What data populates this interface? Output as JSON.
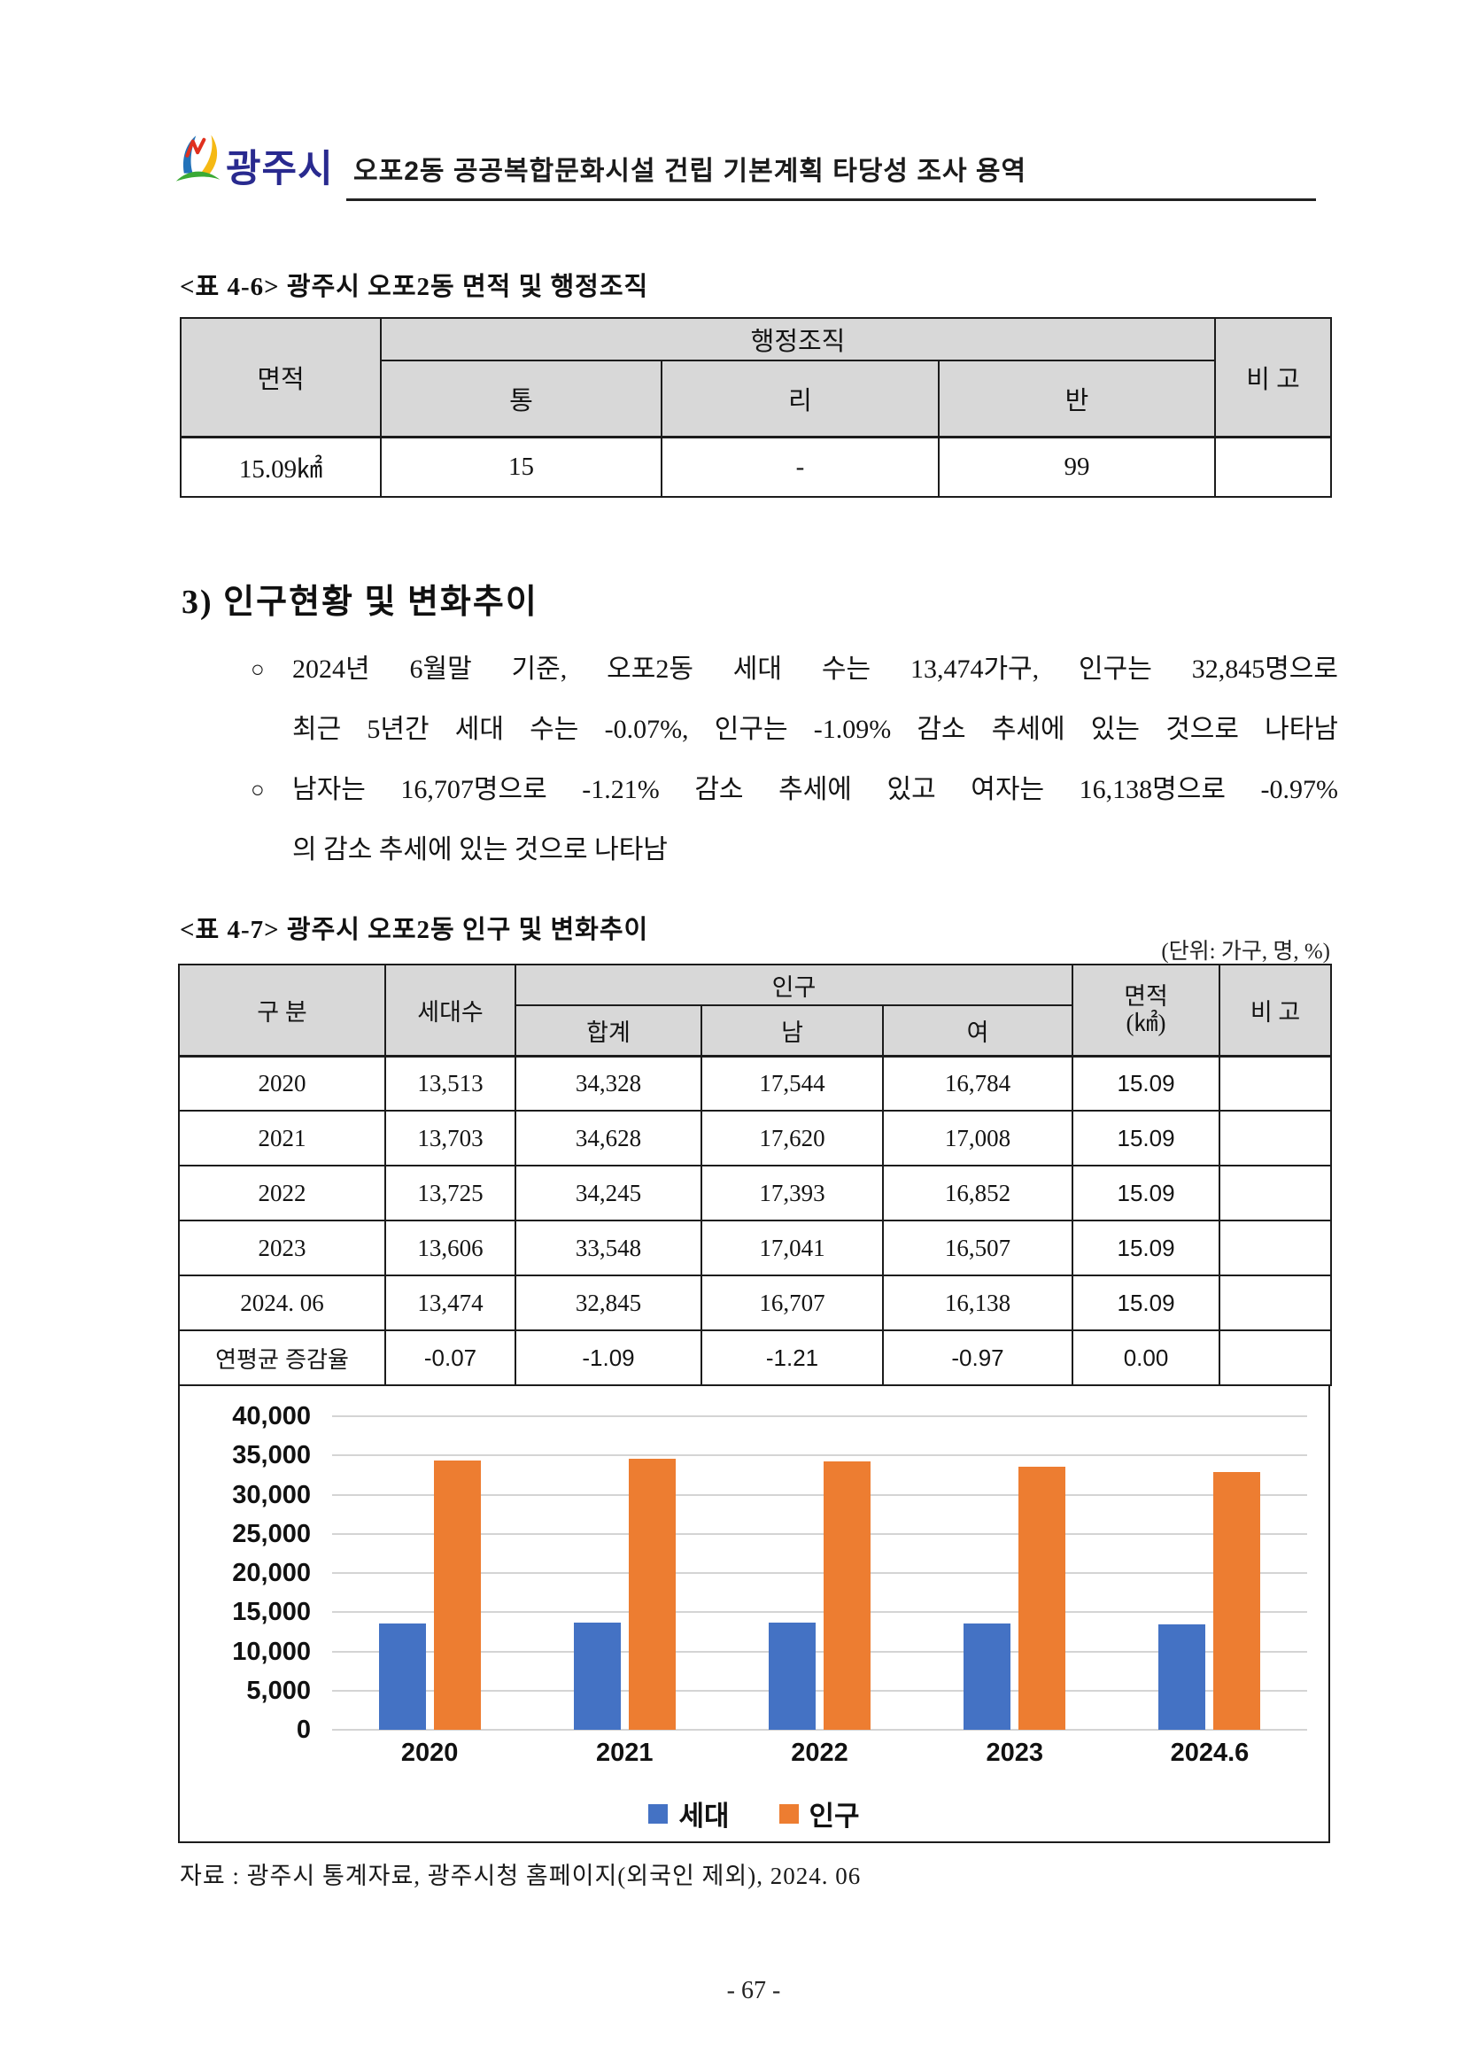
{
  "header": {
    "logo_text": "광주시",
    "title": "오포2동 공공복합문화시설 건립 기본계획 타당성 조사 용역"
  },
  "table46": {
    "title": "<표 4-6> 광주시 오포2동 면적 및 행정조직",
    "headers": {
      "area": "면적",
      "admin_org": "행정조직",
      "tong": "통",
      "ri": "리",
      "ban": "반",
      "note": "비 고"
    },
    "row": {
      "area": "15.09㎢",
      "tong": "15",
      "ri": "-",
      "ban": "99",
      "note": ""
    }
  },
  "section": {
    "heading": "3) 인구현황 및 변화추이",
    "bullet1": {
      "marker": "○",
      "line1": "2024년 6월말 기준, 오포2동 세대 수는 13,474가구, 인구는 32,845명으로",
      "line2": "최근 5년간 세대 수는 -0.07%, 인구는 -1.09% 감소 추세에 있는 것으로 나타남"
    },
    "bullet2": {
      "marker": "○",
      "line1": "남자는 16,707명으로 -1.21% 감소 추세에 있고 여자는 16,138명으로 -0.97%",
      "line2": "의 감소 추세에 있는 것으로 나타남"
    }
  },
  "table47": {
    "title": "<표 4-7> 광주시 오포2동 인구 및 변화추이",
    "unit_note": "(단위: 가구, 명, %)",
    "headers": {
      "category": "구 분",
      "households": "세대수",
      "population": "인구",
      "total": "합계",
      "male": "남",
      "female": "여",
      "area_line1": "면적",
      "area_line2": "(㎢)",
      "note": "비 고"
    },
    "rows": [
      {
        "category": "2020",
        "households": "13,513",
        "total": "34,328",
        "male": "17,544",
        "female": "16,784",
        "area": "15.09",
        "note": ""
      },
      {
        "category": "2021",
        "households": "13,703",
        "total": "34,628",
        "male": "17,620",
        "female": "17,008",
        "area": "15.09",
        "note": ""
      },
      {
        "category": "2022",
        "households": "13,725",
        "total": "34,245",
        "male": "17,393",
        "female": "16,852",
        "area": "15.09",
        "note": ""
      },
      {
        "category": "2023",
        "households": "13,606",
        "total": "33,548",
        "male": "17,041",
        "female": "16,507",
        "area": "15.09",
        "note": ""
      },
      {
        "category": "2024. 06",
        "households": "13,474",
        "total": "32,845",
        "male": "16,707",
        "female": "16,138",
        "area": "15.09",
        "note": ""
      },
      {
        "category": "연평균 증감율",
        "households": "-0.07",
        "total": "-1.09",
        "male": "-1.21",
        "female": "-0.97",
        "area": "0.00",
        "note": ""
      }
    ]
  },
  "chart_data": {
    "type": "bar",
    "categories": [
      "2020",
      "2021",
      "2022",
      "2023",
      "2024.6"
    ],
    "series": [
      {
        "name": "세대",
        "color": "#4472C4",
        "values": [
          13513,
          13703,
          13725,
          13606,
          13474
        ]
      },
      {
        "name": "인구",
        "color": "#ED7D31",
        "values": [
          34328,
          34628,
          34245,
          33548,
          32845
        ]
      }
    ],
    "title": "",
    "xlabel": "",
    "ylabel": "",
    "ylim": [
      0,
      40000
    ],
    "ytick_step": 5000,
    "ytick_labels": [
      "0",
      "5,000",
      "10,000",
      "15,000",
      "20,000",
      "25,000",
      "30,000",
      "35,000",
      "40,000"
    ],
    "grid": true,
    "legend_position": "bottom",
    "gridline_color": "#d4d4d4"
  },
  "source_note": "자료 : 광주시 통계자료, 광주시청 홈페이지(외국인 제외), 2024. 06",
  "page_number": "- 67 -"
}
